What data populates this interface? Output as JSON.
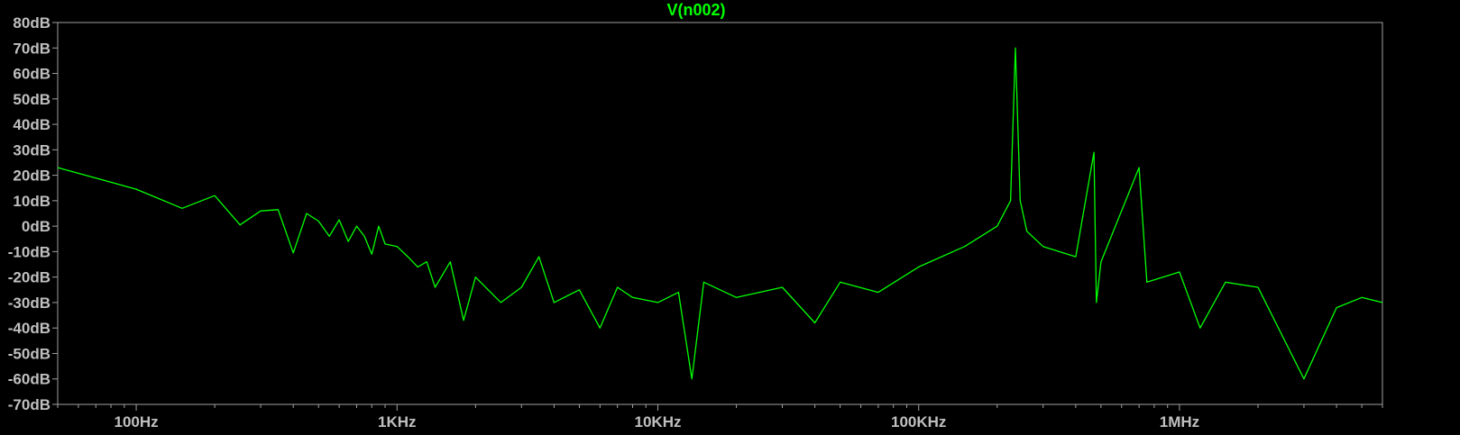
{
  "chart_data": {
    "type": "line",
    "title": "V(n002)",
    "x_scale": "log",
    "xlim": [
      50,
      6000000
    ],
    "ylim": [
      -70,
      80
    ],
    "grid": false,
    "y_ticks": [
      80,
      70,
      60,
      50,
      40,
      30,
      20,
      10,
      0,
      -10,
      -20,
      -30,
      -40,
      -50,
      -60,
      -70
    ],
    "y_tick_labels": [
      "80dB",
      "70dB",
      "60dB",
      "50dB",
      "40dB",
      "30dB",
      "20dB",
      "10dB",
      "0dB",
      "-10dB",
      "-20dB",
      "-30dB",
      "-40dB",
      "-50dB",
      "-60dB",
      "-70dB"
    ],
    "x_ticks": [
      100,
      1000,
      10000,
      100000,
      1000000
    ],
    "x_tick_labels": [
      "100Hz",
      "1KHz",
      "10KHz",
      "100KHz",
      "1MHz"
    ],
    "series": [
      {
        "name": "V(n002)",
        "color": "#00ff00",
        "points": [
          [
            50,
            23
          ],
          [
            100,
            14.5
          ],
          [
            150,
            7
          ],
          [
            200,
            12
          ],
          [
            250,
            0.5
          ],
          [
            300,
            6
          ],
          [
            350,
            6.5
          ],
          [
            400,
            -10.5
          ],
          [
            450,
            5
          ],
          [
            500,
            2
          ],
          [
            550,
            -4
          ],
          [
            600,
            2.5
          ],
          [
            650,
            -6
          ],
          [
            700,
            0
          ],
          [
            750,
            -4
          ],
          [
            800,
            -11
          ],
          [
            850,
            0
          ],
          [
            900,
            -7
          ],
          [
            1000,
            -8
          ],
          [
            1100,
            -12
          ],
          [
            1200,
            -16
          ],
          [
            1300,
            -14
          ],
          [
            1400,
            -24
          ],
          [
            1600,
            -14
          ],
          [
            1800,
            -37
          ],
          [
            2000,
            -20
          ],
          [
            2500,
            -30
          ],
          [
            3000,
            -24
          ],
          [
            3500,
            -12
          ],
          [
            4000,
            -30
          ],
          [
            5000,
            -25
          ],
          [
            6000,
            -40
          ],
          [
            7000,
            -24
          ],
          [
            8000,
            -28
          ],
          [
            10000,
            -30
          ],
          [
            12000,
            -26
          ],
          [
            13500,
            -60
          ],
          [
            15000,
            -22
          ],
          [
            20000,
            -28
          ],
          [
            30000,
            -24
          ],
          [
            40000,
            -38
          ],
          [
            50000,
            -22
          ],
          [
            70000,
            -26
          ],
          [
            100000,
            -16
          ],
          [
            150000,
            -8
          ],
          [
            200000,
            0
          ],
          [
            225000,
            10
          ],
          [
            235000,
            70
          ],
          [
            245000,
            10
          ],
          [
            260000,
            -2
          ],
          [
            300000,
            -8
          ],
          [
            400000,
            -12
          ],
          [
            470000,
            29
          ],
          [
            480000,
            -30
          ],
          [
            500000,
            -14
          ],
          [
            700000,
            23
          ],
          [
            750000,
            -22
          ],
          [
            1000000,
            -18
          ],
          [
            1200000,
            -40
          ],
          [
            1500000,
            -22
          ],
          [
            2000000,
            -24
          ],
          [
            3000000,
            -60
          ],
          [
            4000000,
            -32
          ],
          [
            5000000,
            -28
          ],
          [
            6000000,
            -30
          ]
        ]
      }
    ]
  }
}
